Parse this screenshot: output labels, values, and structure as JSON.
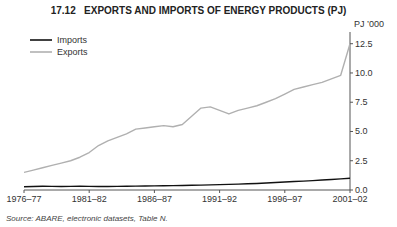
{
  "chart_data": {
    "type": "line",
    "title": "17.12   EXPORTS AND IMPORTS OF ENERGY PRODUCTS (PJ)",
    "ylabel": "PJ ’000",
    "source": "Source: ABARE, electronic datasets, Table N.",
    "categories": [
      "1976–77",
      null,
      null,
      null,
      null,
      null,
      null,
      "1981–82",
      null,
      null,
      null,
      null,
      null,
      null,
      "1986–87",
      null,
      null,
      null,
      null,
      null,
      null,
      "1991–92",
      null,
      null,
      null,
      null,
      null,
      null,
      "1996–97",
      null,
      null,
      null,
      null,
      null,
      null,
      "2001–02"
    ],
    "series": [
      {
        "name": "Imports",
        "color": "#111111",
        "values": [
          0.28,
          0.3,
          0.32,
          0.31,
          0.3,
          0.31,
          0.32,
          0.31,
          0.3,
          0.3,
          0.31,
          0.32,
          0.33,
          0.34,
          0.35,
          0.36,
          0.37,
          0.38,
          0.4,
          0.42,
          0.44,
          0.46,
          0.48,
          0.5,
          0.53,
          0.56,
          0.6,
          0.64,
          0.68,
          0.72,
          0.76,
          0.8,
          0.85,
          0.9,
          0.95,
          1.0
        ]
      },
      {
        "name": "Exports",
        "color": "#b0b0b0",
        "values": [
          1.5,
          1.7,
          1.9,
          2.1,
          2.3,
          2.5,
          2.8,
          3.2,
          3.8,
          4.2,
          4.5,
          4.8,
          5.2,
          5.3,
          5.4,
          5.5,
          5.4,
          5.6,
          6.3,
          7.0,
          7.1,
          6.8,
          6.5,
          6.8,
          7.0,
          7.2,
          7.5,
          7.8,
          8.2,
          8.6,
          8.8,
          9.0,
          9.2,
          9.5,
          9.8,
          12.5
        ]
      }
    ],
    "ylim": [
      0,
      13.5
    ],
    "yticks": [
      {
        "value": 0,
        "label": "0.0"
      },
      2.5,
      {
        "value": 5,
        "label": "5.0"
      },
      7.5,
      {
        "value": 10,
        "label": "10.0"
      },
      12.5
    ],
    "grid": false,
    "legend": "upper left"
  }
}
